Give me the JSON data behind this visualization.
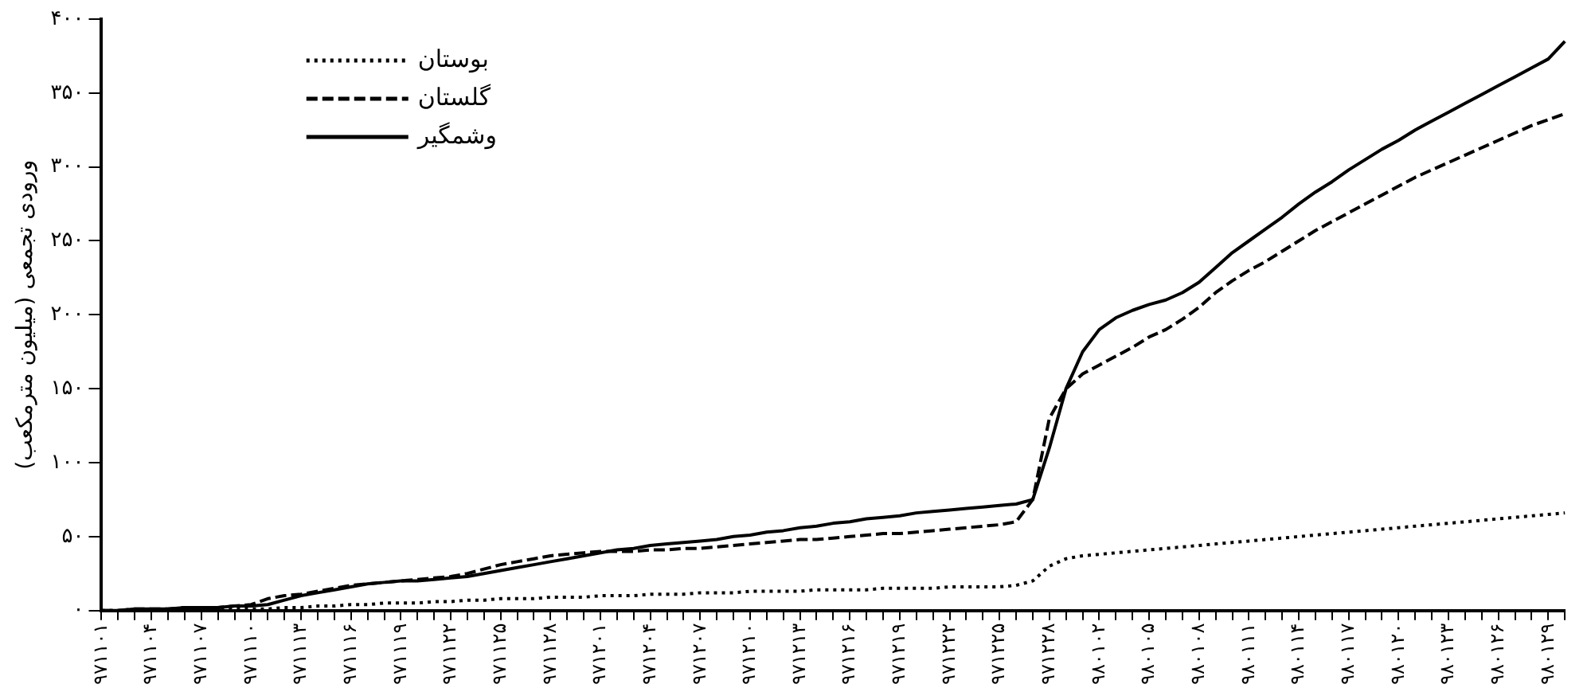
{
  "chart_data": {
    "type": "line",
    "ylabel": "ورودی تجمعی (میلیون مترمکعب)",
    "categories": [
      "۹۷۱۱۰۱",
      null,
      null,
      "۹۷۱۱۰۴",
      null,
      null,
      "۹۷۱۱۰۷",
      null,
      null,
      "۹۷۱۱۱۰",
      null,
      null,
      "۹۷۱۱۱۳",
      null,
      null,
      "۹۷۱۱۱۶",
      null,
      null,
      "۹۷۱۱۱۹",
      null,
      null,
      "۹۷۱۱۲۲",
      null,
      null,
      "۹۷۱۱۲۵",
      null,
      null,
      "۹۷۱۱۲۸",
      null,
      null,
      "۹۷۱۲۰۱",
      null,
      null,
      "۹۷۱۲۰۴",
      null,
      null,
      "۹۷۱۲۰۷",
      null,
      null,
      "۹۷۱۲۱۰",
      null,
      null,
      "۹۷۱۲۱۳",
      null,
      null,
      "۹۷۱۲۱۶",
      null,
      null,
      "۹۷۱۲۱۹",
      null,
      null,
      "۹۷۱۲۲۲",
      null,
      null,
      "۹۷۱۲۲۵",
      null,
      null,
      "۹۷۱۲۲۸",
      null,
      null,
      "۹۸۰۱۰۲",
      null,
      null,
      "۹۸۰۱۰۵",
      null,
      null,
      "۹۸۰۱۰۸",
      null,
      null,
      "۹۸۰۱۱۱",
      null,
      null,
      "۹۸۰۱۱۴",
      null,
      null,
      "۹۸۰۱۱۷",
      null,
      null,
      "۹۸۰۱۲۰",
      null,
      null,
      "۹۸۰۱۲۳",
      null,
      null,
      "۹۸۰۱۲۶",
      null,
      null,
      "۹۸۰۱۲۹",
      null
    ],
    "series": [
      {
        "name": "بوستان",
        "color": "#000000",
        "line_style": "dotted",
        "values": [
          0,
          0,
          0,
          0,
          0,
          0,
          0,
          0,
          1,
          1,
          1,
          2,
          2,
          3,
          3,
          4,
          4,
          5,
          5,
          5,
          6,
          6,
          7,
          7,
          8,
          8,
          8,
          9,
          9,
          9,
          10,
          10,
          10,
          11,
          11,
          11,
          12,
          12,
          12,
          13,
          13,
          13,
          13,
          14,
          14,
          14,
          14,
          15,
          15,
          15,
          15,
          16,
          16,
          16,
          16,
          17,
          20,
          30,
          35,
          37,
          38,
          39,
          40,
          41,
          42,
          43,
          44,
          45,
          46,
          47,
          48,
          49,
          50,
          51,
          52,
          53,
          54,
          55,
          56,
          57,
          58,
          59,
          60,
          61,
          62,
          63,
          64,
          65,
          66
        ]
      },
      {
        "name": "گلستان",
        "color": "#000000",
        "line_style": "dashed",
        "values": [
          0,
          0,
          1,
          1,
          1,
          2,
          2,
          2,
          3,
          4,
          8,
          10,
          11,
          13,
          15,
          17,
          18,
          19,
          20,
          21,
          22,
          23,
          25,
          28,
          31,
          33,
          35,
          37,
          38,
          39,
          40,
          40,
          40,
          41,
          41,
          42,
          42,
          43,
          44,
          45,
          46,
          47,
          48,
          48,
          49,
          50,
          51,
          52,
          52,
          53,
          54,
          55,
          56,
          57,
          58,
          60,
          75,
          130,
          150,
          160,
          166,
          172,
          178,
          185,
          190,
          197,
          205,
          215,
          223,
          230,
          236,
          243,
          250,
          257,
          263,
          269,
          275,
          281,
          287,
          293,
          298,
          303,
          308,
          313,
          318,
          323,
          328,
          332,
          336
        ]
      },
      {
        "name": "وشمگیر",
        "color": "#000000",
        "line_style": "solid",
        "values": [
          0,
          0,
          1,
          1,
          1,
          2,
          2,
          2,
          3,
          3,
          4,
          7,
          10,
          12,
          14,
          16,
          18,
          19,
          20,
          20,
          21,
          22,
          23,
          25,
          27,
          29,
          31,
          33,
          35,
          37,
          39,
          41,
          42,
          44,
          45,
          46,
          47,
          48,
          50,
          51,
          53,
          54,
          56,
          57,
          59,
          60,
          62,
          63,
          64,
          66,
          67,
          68,
          69,
          70,
          71,
          72,
          75,
          110,
          150,
          175,
          190,
          198,
          203,
          207,
          210,
          215,
          222,
          232,
          242,
          250,
          258,
          266,
          275,
          283,
          290,
          298,
          305,
          312,
          318,
          325,
          331,
          337,
          343,
          349,
          355,
          361,
          367,
          373,
          385
        ]
      }
    ],
    "ylim": [
      0,
      400
    ],
    "yticks": [
      {
        "value": 0,
        "label": "۰"
      },
      {
        "value": 50,
        "label": "۵۰"
      },
      {
        "value": 100,
        "label": "۱۰۰"
      },
      {
        "value": 150,
        "label": "۱۵۰"
      },
      {
        "value": 200,
        "label": "۲۰۰"
      },
      {
        "value": 250,
        "label": "۲۵۰"
      },
      {
        "value": 300,
        "label": "۳۰۰"
      },
      {
        "value": 350,
        "label": "۳۵۰"
      },
      {
        "value": 400,
        "label": "۴۰۰"
      }
    ],
    "legend": "top left",
    "marker": "none"
  }
}
